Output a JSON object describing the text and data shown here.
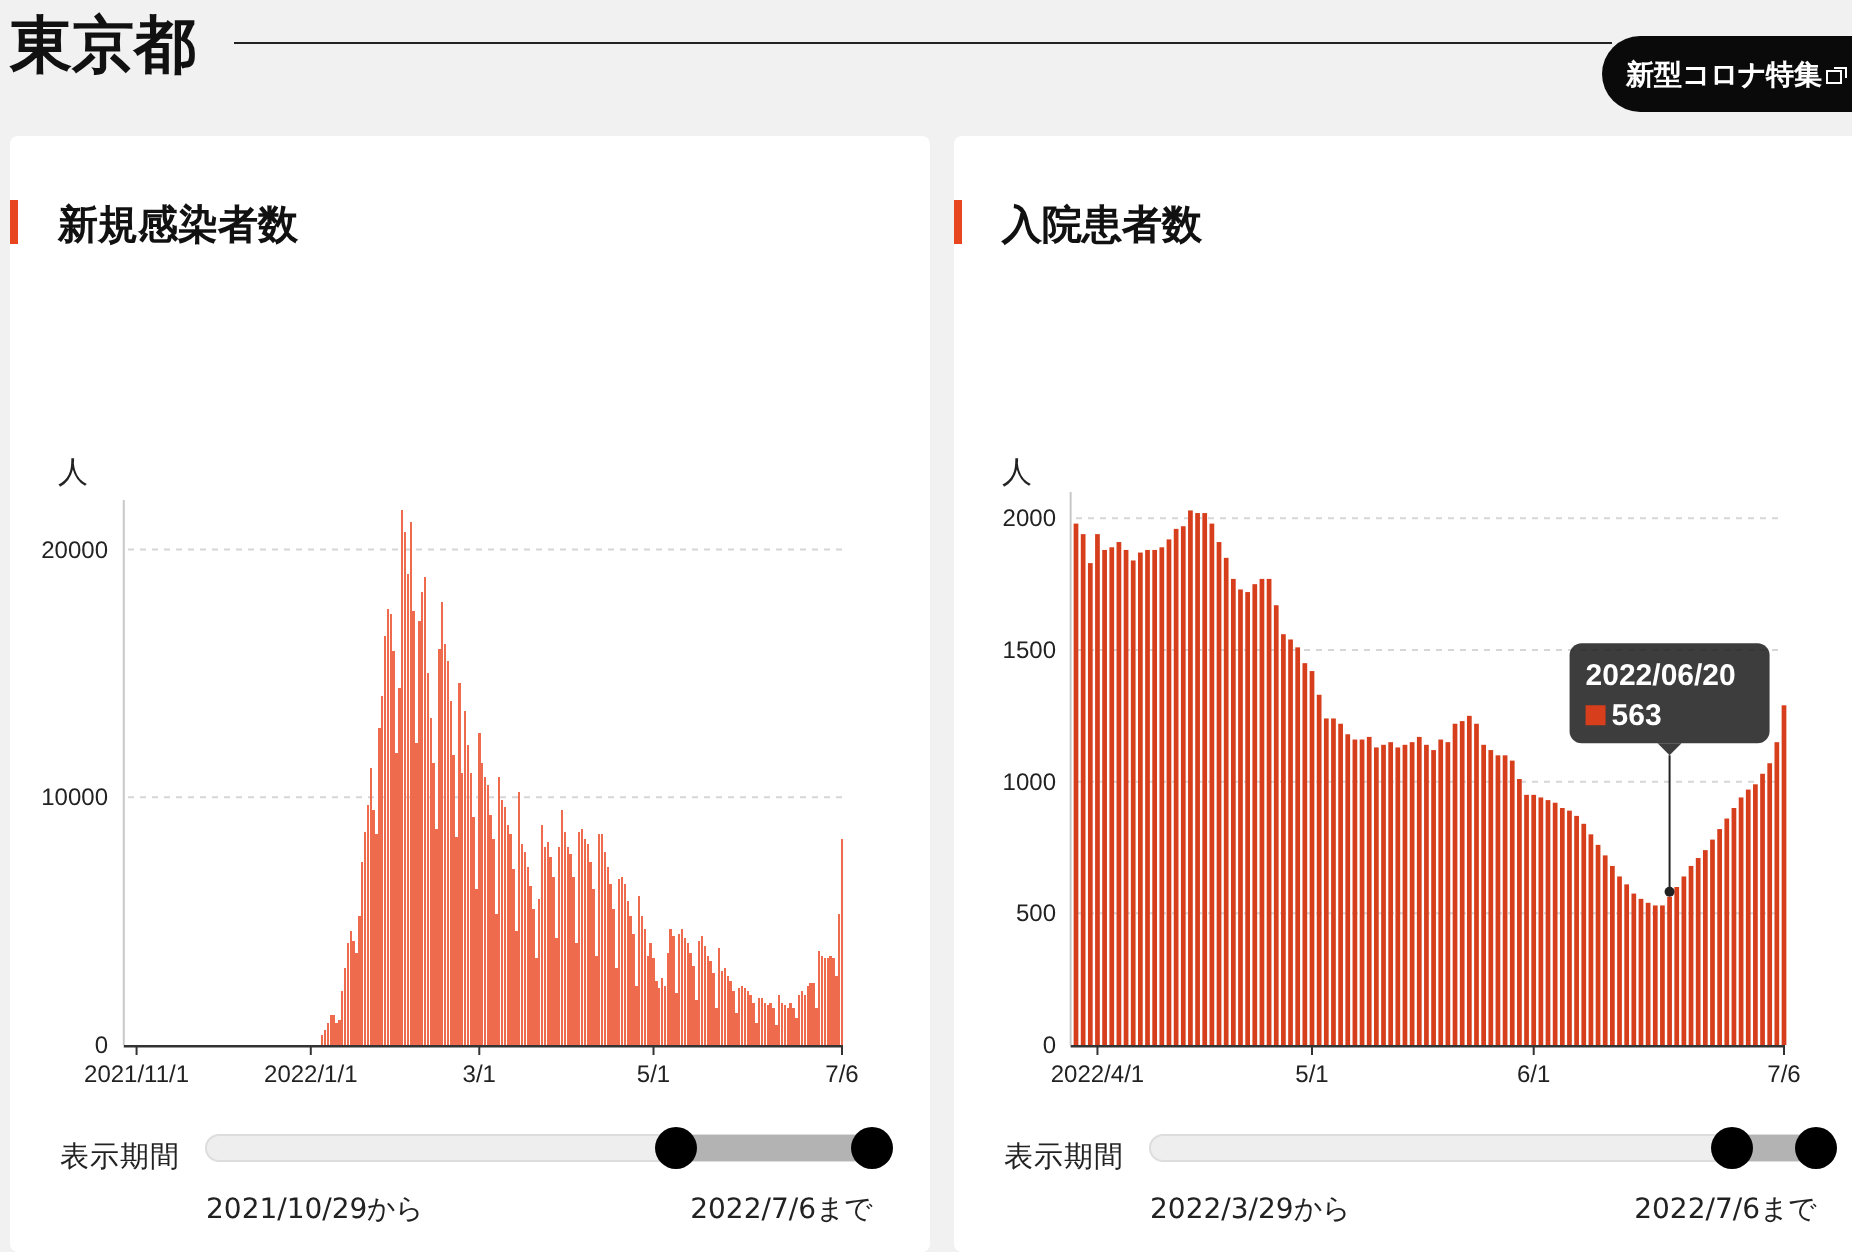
{
  "chart_data": [
    {
      "type": "other",
      "title": "東京都",
      "annotations": [
        "新型コロナ特集"
      ]
    },
    {
      "type": "bar",
      "title": "新規感染者数",
      "ylabel": "人",
      "color": "#ee6c4d",
      "grid": "y",
      "xlim": [
        "2021-10-29",
        "2022-07-06"
      ],
      "ylim": [
        0,
        22000
      ],
      "yticks": [
        0,
        10000,
        20000
      ],
      "xticks": [
        {
          "value": "2021-11-01",
          "label": "2021/11/1"
        },
        {
          "value": "2022-01-01",
          "label": "2022/1/1"
        },
        {
          "value": "2022-03-01",
          "label": "3/1"
        },
        {
          "value": "2022-05-01",
          "label": "5/1"
        },
        {
          "value": "2022-07-06",
          "label": "7/6"
        }
      ],
      "x": [
        "2021-10-29",
        "2021-10-30",
        "2021-10-31",
        "2021-11-01",
        "2021-11-02",
        "2021-11-03",
        "2021-11-04",
        "2021-11-05",
        "2021-11-06",
        "2021-11-07",
        "2021-11-08",
        "2021-11-09",
        "2021-11-10",
        "2021-11-11",
        "2021-11-12",
        "2021-11-13",
        "2021-11-14",
        "2021-11-15",
        "2021-11-16",
        "2021-11-17",
        "2021-11-18",
        "2021-11-19",
        "2021-11-20",
        "2021-11-21",
        "2021-11-22",
        "2021-11-23",
        "2021-11-24",
        "2021-11-25",
        "2021-11-26",
        "2021-11-27",
        "2021-11-28",
        "2021-11-29",
        "2021-11-30",
        "2021-12-01",
        "2021-12-02",
        "2021-12-03",
        "2021-12-04",
        "2021-12-05",
        "2021-12-06",
        "2021-12-07",
        "2021-12-08",
        "2021-12-09",
        "2021-12-10",
        "2021-12-11",
        "2021-12-12",
        "2021-12-13",
        "2021-12-14",
        "2021-12-15",
        "2021-12-16",
        "2021-12-17",
        "2021-12-18",
        "2021-12-19",
        "2021-12-20",
        "2021-12-21",
        "2021-12-22",
        "2021-12-23",
        "2021-12-24",
        "2021-12-25",
        "2021-12-26",
        "2021-12-27",
        "2021-12-28",
        "2021-12-29",
        "2021-12-30",
        "2021-12-31",
        "2022-01-01",
        "2022-01-02",
        "2022-01-03",
        "2022-01-04",
        "2022-01-05",
        "2022-01-06",
        "2022-01-07",
        "2022-01-08",
        "2022-01-09",
        "2022-01-10",
        "2022-01-11",
        "2022-01-12",
        "2022-01-13",
        "2022-01-14",
        "2022-01-15",
        "2022-01-16",
        "2022-01-17",
        "2022-01-18",
        "2022-01-19",
        "2022-01-20",
        "2022-01-21",
        "2022-01-22",
        "2022-01-23",
        "2022-01-24",
        "2022-01-25",
        "2022-01-26",
        "2022-01-27",
        "2022-01-28",
        "2022-01-29",
        "2022-01-30",
        "2022-01-31",
        "2022-02-01",
        "2022-02-02",
        "2022-02-03",
        "2022-02-04",
        "2022-02-05",
        "2022-02-06",
        "2022-02-07",
        "2022-02-08",
        "2022-02-09",
        "2022-02-10",
        "2022-02-11",
        "2022-02-12",
        "2022-02-13",
        "2022-02-14",
        "2022-02-15",
        "2022-02-16",
        "2022-02-17",
        "2022-02-18",
        "2022-02-19",
        "2022-02-20",
        "2022-02-21",
        "2022-02-22",
        "2022-02-23",
        "2022-02-24",
        "2022-02-25",
        "2022-02-26",
        "2022-02-27",
        "2022-02-28",
        "2022-03-01",
        "2022-03-02",
        "2022-03-03",
        "2022-03-04",
        "2022-03-05",
        "2022-03-06",
        "2022-03-07",
        "2022-03-08",
        "2022-03-09",
        "2022-03-10",
        "2022-03-11",
        "2022-03-12",
        "2022-03-13",
        "2022-03-14",
        "2022-03-15",
        "2022-03-16",
        "2022-03-17",
        "2022-03-18",
        "2022-03-19",
        "2022-03-20",
        "2022-03-21",
        "2022-03-22",
        "2022-03-23",
        "2022-03-24",
        "2022-03-25",
        "2022-03-26",
        "2022-03-27",
        "2022-03-28",
        "2022-03-29",
        "2022-03-30",
        "2022-03-31",
        "2022-04-01",
        "2022-04-02",
        "2022-04-03",
        "2022-04-04",
        "2022-04-05",
        "2022-04-06",
        "2022-04-07",
        "2022-04-08",
        "2022-04-09",
        "2022-04-10",
        "2022-04-11",
        "2022-04-12",
        "2022-04-13",
        "2022-04-14",
        "2022-04-15",
        "2022-04-16",
        "2022-04-17",
        "2022-04-18",
        "2022-04-19",
        "2022-04-20",
        "2022-04-21",
        "2022-04-22",
        "2022-04-23",
        "2022-04-24",
        "2022-04-25",
        "2022-04-26",
        "2022-04-27",
        "2022-04-28",
        "2022-04-29",
        "2022-04-30",
        "2022-05-01",
        "2022-05-02",
        "2022-05-03",
        "2022-05-04",
        "2022-05-05",
        "2022-05-06",
        "2022-05-07",
        "2022-05-08",
        "2022-05-09",
        "2022-05-10",
        "2022-05-11",
        "2022-05-12",
        "2022-05-13",
        "2022-05-14",
        "2022-05-15",
        "2022-05-16",
        "2022-05-17",
        "2022-05-18",
        "2022-05-19",
        "2022-05-20",
        "2022-05-21",
        "2022-05-22",
        "2022-05-23",
        "2022-05-24",
        "2022-05-25",
        "2022-05-26",
        "2022-05-27",
        "2022-05-28",
        "2022-05-29",
        "2022-05-30",
        "2022-05-31",
        "2022-06-01",
        "2022-06-02",
        "2022-06-03",
        "2022-06-04",
        "2022-06-05",
        "2022-06-06",
        "2022-06-07",
        "2022-06-08",
        "2022-06-09",
        "2022-06-10",
        "2022-06-11",
        "2022-06-12",
        "2022-06-13",
        "2022-06-14",
        "2022-06-15",
        "2022-06-16",
        "2022-06-17",
        "2022-06-18",
        "2022-06-19",
        "2022-06-20",
        "2022-06-21",
        "2022-06-22",
        "2022-06-23",
        "2022-06-24",
        "2022-06-25",
        "2022-06-26",
        "2022-06-27",
        "2022-06-28",
        "2022-06-29",
        "2022-06-30",
        "2022-07-01",
        "2022-07-02",
        "2022-07-03",
        "2022-07-04",
        "2022-07-05",
        "2022-07-06"
      ],
      "values": [
        0,
        0,
        0,
        0,
        0,
        0,
        0,
        0,
        0,
        0,
        0,
        0,
        0,
        0,
        0,
        0,
        0,
        0,
        0,
        0,
        0,
        0,
        0,
        0,
        0,
        0,
        0,
        0,
        0,
        0,
        0,
        0,
        0,
        0,
        0,
        0,
        0,
        0,
        0,
        0,
        0,
        0,
        0,
        0,
        0,
        0,
        0,
        0,
        0,
        0,
        0,
        0,
        0,
        0,
        0,
        0,
        0,
        0,
        0,
        0,
        0,
        0,
        0,
        0,
        0,
        0,
        0,
        0,
        400,
        600,
        900,
        1200,
        1200,
        900,
        1000,
        2200,
        3100,
        4100,
        4600,
        4200,
        3700,
        5200,
        7400,
        8600,
        9700,
        11200,
        9500,
        8500,
        12800,
        14100,
        16500,
        17600,
        17400,
        15900,
        11800,
        14400,
        21600,
        20700,
        19000,
        21100,
        17500,
        12200,
        17100,
        18300,
        18900,
        15000,
        13200,
        11400,
        8700,
        16000,
        17900,
        16200,
        15500,
        13900,
        11700,
        8400,
        14600,
        11000,
        13500,
        12100,
        11000,
        9200,
        6300,
        12600,
        11400,
        10800,
        10500,
        9300,
        8300,
        5300,
        10800,
        9900,
        9600,
        8900,
        8500,
        7100,
        4600,
        10200,
        8100,
        7800,
        7200,
        6400,
        5500,
        3500,
        5900,
        8900,
        8000,
        8200,
        7600,
        6800,
        4300,
        8000,
        9500,
        8600,
        8000,
        7700,
        6800,
        4100,
        8600,
        8700,
        8300,
        8100,
        7400,
        6300,
        3600,
        8500,
        8500,
        7800,
        7200,
        6500,
        5500,
        3100,
        6700,
        6800,
        6500,
        5800,
        5200,
        4500,
        2400,
        6000,
        5200,
        4700,
        3600,
        4100,
        3500,
        2600,
        2300,
        2700,
        2400,
        3700,
        4700,
        4400,
        2100,
        4500,
        4700,
        4300,
        4100,
        3700,
        3200,
        1800,
        4200,
        4400,
        4000,
        3600,
        3400,
        2900,
        1500,
        3900,
        3000,
        3100,
        2800,
        2600,
        2200,
        1300,
        2300,
        2400,
        2300,
        2200,
        2000,
        1700,
        900,
        1900,
        1900,
        1700,
        1600,
        1700,
        1500,
        800,
        2000,
        1700,
        1600,
        1500,
        1700,
        1500,
        1100,
        2000,
        2200,
        2000,
        2400,
        2500,
        2500,
        1500,
        3800,
        3600,
        3500,
        3500,
        3600,
        3500,
        2800,
        5300,
        8300
      ],
      "annotations": [
        "表示期間",
        "2021/10/29から",
        "2022/7/6まで"
      ]
    },
    {
      "type": "bar",
      "title": "入院患者数",
      "ylabel": "人",
      "color": "#d63e1c",
      "grid": "y",
      "xlim": [
        "2022-03-29",
        "2022-07-06"
      ],
      "ylim": [
        0,
        2100
      ],
      "yticks": [
        0,
        500,
        1000,
        1500,
        2000
      ],
      "xticks": [
        {
          "value": "2022-04-01",
          "label": "2022/4/1"
        },
        {
          "value": "2022-05-01",
          "label": "5/1"
        },
        {
          "value": "2022-06-01",
          "label": "6/1"
        },
        {
          "value": "2022-07-06",
          "label": "7/6"
        }
      ],
      "x": [
        "2022-03-29",
        "2022-03-30",
        "2022-03-31",
        "2022-04-01",
        "2022-04-02",
        "2022-04-03",
        "2022-04-04",
        "2022-04-05",
        "2022-04-06",
        "2022-04-07",
        "2022-04-08",
        "2022-04-09",
        "2022-04-10",
        "2022-04-11",
        "2022-04-12",
        "2022-04-13",
        "2022-04-14",
        "2022-04-15",
        "2022-04-16",
        "2022-04-17",
        "2022-04-18",
        "2022-04-19",
        "2022-04-20",
        "2022-04-21",
        "2022-04-22",
        "2022-04-23",
        "2022-04-24",
        "2022-04-25",
        "2022-04-26",
        "2022-04-27",
        "2022-04-28",
        "2022-04-29",
        "2022-04-30",
        "2022-05-01",
        "2022-05-02",
        "2022-05-03",
        "2022-05-04",
        "2022-05-05",
        "2022-05-06",
        "2022-05-07",
        "2022-05-08",
        "2022-05-09",
        "2022-05-10",
        "2022-05-11",
        "2022-05-12",
        "2022-05-13",
        "2022-05-14",
        "2022-05-15",
        "2022-05-16",
        "2022-05-17",
        "2022-05-18",
        "2022-05-19",
        "2022-05-20",
        "2022-05-21",
        "2022-05-22",
        "2022-05-23",
        "2022-05-24",
        "2022-05-25",
        "2022-05-26",
        "2022-05-27",
        "2022-05-28",
        "2022-05-29",
        "2022-05-30",
        "2022-05-31",
        "2022-06-01",
        "2022-06-02",
        "2022-06-03",
        "2022-06-04",
        "2022-06-05",
        "2022-06-06",
        "2022-06-07",
        "2022-06-08",
        "2022-06-09",
        "2022-06-10",
        "2022-06-11",
        "2022-06-12",
        "2022-06-13",
        "2022-06-14",
        "2022-06-15",
        "2022-06-16",
        "2022-06-17",
        "2022-06-18",
        "2022-06-19",
        "2022-06-20",
        "2022-06-21",
        "2022-06-22",
        "2022-06-23",
        "2022-06-24",
        "2022-06-25",
        "2022-06-26",
        "2022-06-27",
        "2022-06-28",
        "2022-06-29",
        "2022-06-30",
        "2022-07-01",
        "2022-07-02",
        "2022-07-03",
        "2022-07-04",
        "2022-07-05",
        "2022-07-06"
      ],
      "values": [
        1980,
        1940,
        1830,
        1940,
        1880,
        1890,
        1910,
        1880,
        1840,
        1870,
        1880,
        1880,
        1890,
        1920,
        1960,
        1970,
        2030,
        2020,
        2020,
        1980,
        1910,
        1850,
        1770,
        1730,
        1720,
        1750,
        1770,
        1770,
        1670,
        1560,
        1540,
        1510,
        1450,
        1420,
        1330,
        1240,
        1240,
        1220,
        1180,
        1160,
        1160,
        1170,
        1130,
        1140,
        1150,
        1130,
        1140,
        1150,
        1170,
        1140,
        1120,
        1160,
        1150,
        1220,
        1230,
        1250,
        1220,
        1140,
        1120,
        1100,
        1100,
        1080,
        1010,
        950,
        950,
        940,
        930,
        920,
        900,
        890,
        870,
        840,
        800,
        760,
        720,
        680,
        640,
        610,
        575,
        555,
        540,
        530,
        530,
        563,
        600,
        640,
        680,
        710,
        740,
        780,
        820,
        860,
        900,
        940,
        970,
        990,
        1030,
        1070,
        1150,
        1290
      ],
      "annotations": [
        "2022/06/20",
        {
          "text": "563",
          "x": "2022-06-20",
          "y": 563
        },
        "表示期間",
        "2022/3/29から",
        "2022/7/6まで"
      ]
    }
  ]
}
